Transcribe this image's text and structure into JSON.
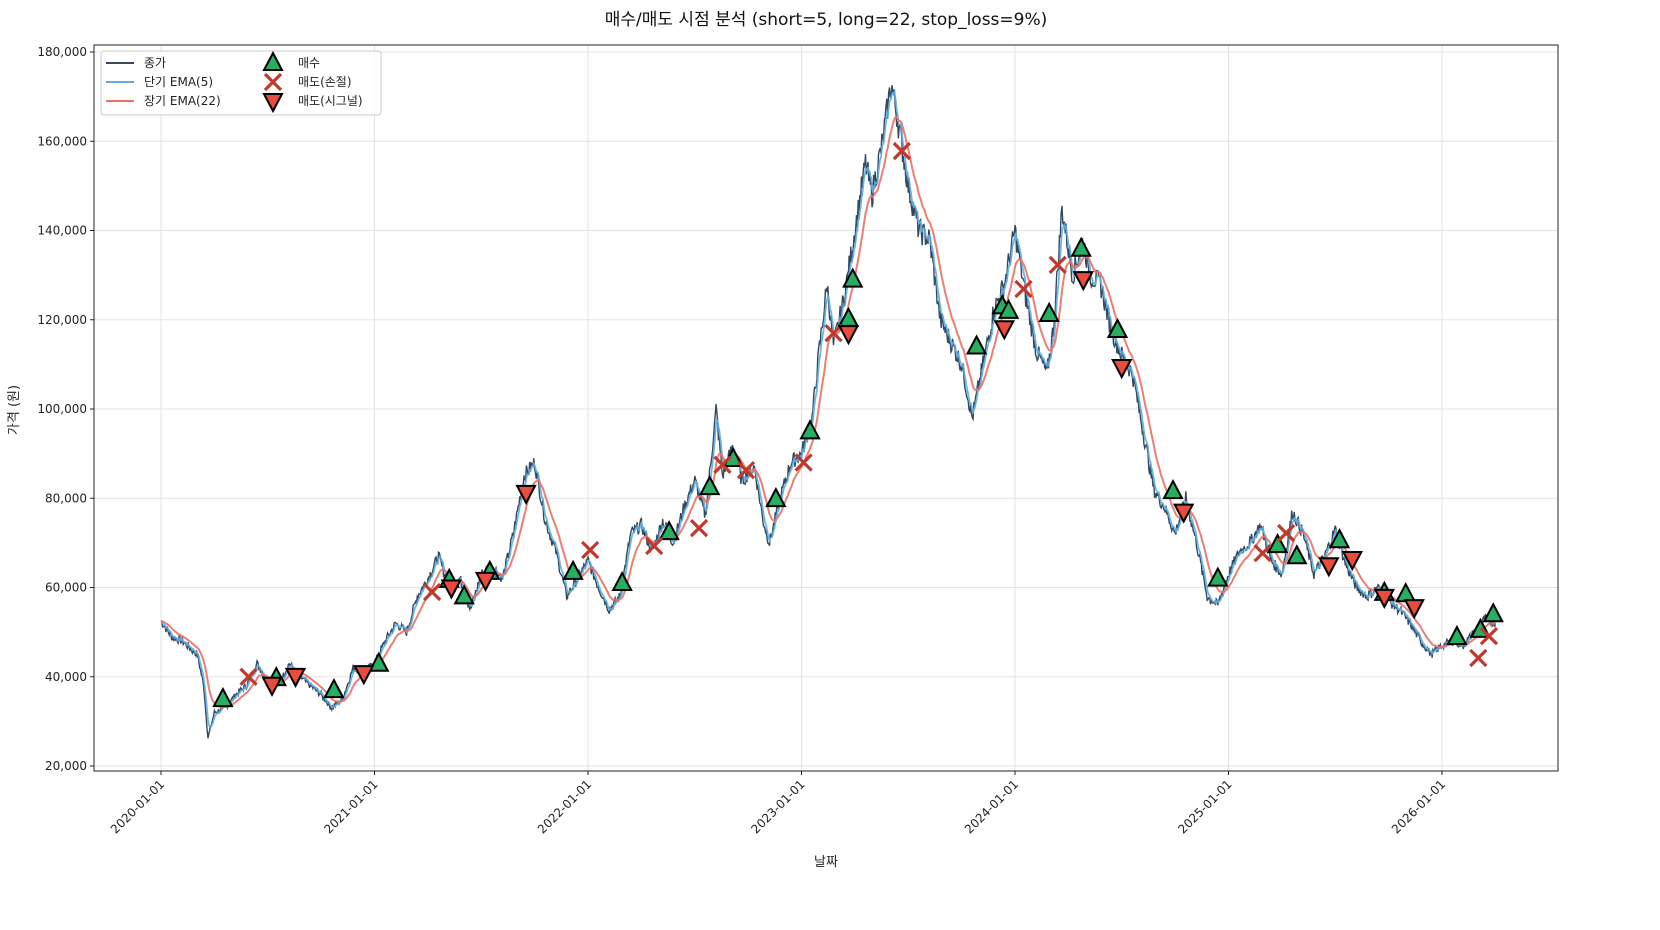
{
  "chart_data": {
    "type": "line",
    "title": "매수/매도 시점 분석 (short=5, long=22, stop_loss=9%)",
    "xlabel": "날짜",
    "ylabel": "가격 (원)",
    "ylim": [
      19000,
      181000
    ],
    "xlim_years": [
      2019.69,
      2026.54
    ],
    "yticks": [
      20000,
      40000,
      60000,
      80000,
      100000,
      120000,
      140000,
      160000,
      180000
    ],
    "ytick_labels": [
      "20,000",
      "40,000",
      "60,000",
      "80,000",
      "100,000",
      "120,000",
      "140,000",
      "160,000",
      "180,000"
    ],
    "xticks": [
      2020,
      2021,
      2022,
      2023,
      2024,
      2025,
      2026
    ],
    "xtick_labels": [
      "2020-01-01",
      "2021-01-01",
      "2022-01-01",
      "2023-01-01",
      "2024-01-01",
      "2025-01-01",
      "2026-01-01"
    ],
    "grid": true,
    "legend_position": "top-left",
    "legend": [
      "종가",
      "단기 EMA(5)",
      "장기 EMA(22)",
      "매수",
      "매도(손절)",
      "매도(시그널)"
    ],
    "colors": {
      "close": "#34495e",
      "short": "#5dade2",
      "long": "#ec7063",
      "buy": "#27ae60",
      "stop": "#c0392b",
      "signal": "#e74c3c"
    },
    "ema_short_span": 5,
    "ema_long_span": 22,
    "close_series_years_vs_thousand_won": [
      [
        2020.0,
        52.5
      ],
      [
        2020.05,
        49
      ],
      [
        2020.1,
        48
      ],
      [
        2020.17,
        45
      ],
      [
        2020.2,
        38
      ],
      [
        2020.22,
        26.3
      ],
      [
        2020.25,
        32
      ],
      [
        2020.3,
        33
      ],
      [
        2020.35,
        36
      ],
      [
        2020.4,
        38
      ],
      [
        2020.45,
        43
      ],
      [
        2020.5,
        39
      ],
      [
        2020.55,
        38
      ],
      [
        2020.6,
        43
      ],
      [
        2020.65,
        40
      ],
      [
        2020.7,
        38
      ],
      [
        2020.75,
        36
      ],
      [
        2020.8,
        33
      ],
      [
        2020.85,
        35
      ],
      [
        2020.9,
        42
      ],
      [
        2020.95,
        41
      ],
      [
        2021.0,
        43
      ],
      [
        2021.05,
        48
      ],
      [
        2021.1,
        52
      ],
      [
        2021.15,
        50
      ],
      [
        2021.2,
        58
      ],
      [
        2021.25,
        62
      ],
      [
        2021.3,
        67
      ],
      [
        2021.35,
        60
      ],
      [
        2021.4,
        62
      ],
      [
        2021.45,
        55
      ],
      [
        2021.5,
        63
      ],
      [
        2021.55,
        65
      ],
      [
        2021.6,
        62
      ],
      [
        2021.65,
        72
      ],
      [
        2021.7,
        85
      ],
      [
        2021.75,
        88
      ],
      [
        2021.8,
        75
      ],
      [
        2021.85,
        68
      ],
      [
        2021.9,
        58
      ],
      [
        2021.95,
        62
      ],
      [
        2022.0,
        66
      ],
      [
        2022.05,
        60
      ],
      [
        2022.1,
        55
      ],
      [
        2022.15,
        58
      ],
      [
        2022.2,
        72
      ],
      [
        2022.25,
        74
      ],
      [
        2022.3,
        68
      ],
      [
        2022.35,
        75
      ],
      [
        2022.4,
        70
      ],
      [
        2022.45,
        78
      ],
      [
        2022.5,
        84
      ],
      [
        2022.55,
        76
      ],
      [
        2022.6,
        100
      ],
      [
        2022.63,
        85
      ],
      [
        2022.68,
        92
      ],
      [
        2022.72,
        84
      ],
      [
        2022.78,
        87
      ],
      [
        2022.82,
        75
      ],
      [
        2022.85,
        70
      ],
      [
        2022.9,
        80
      ],
      [
        2022.95,
        88
      ],
      [
        2023.0,
        90
      ],
      [
        2023.05,
        98
      ],
      [
        2023.08,
        112
      ],
      [
        2023.12,
        128
      ],
      [
        2023.15,
        114
      ],
      [
        2023.2,
        125
      ],
      [
        2023.25,
        140
      ],
      [
        2023.3,
        155
      ],
      [
        2023.33,
        148
      ],
      [
        2023.38,
        160
      ],
      [
        2023.42,
        173
      ],
      [
        2023.45,
        165
      ],
      [
        2023.5,
        150
      ],
      [
        2023.55,
        140
      ],
      [
        2023.6,
        138
      ],
      [
        2023.65,
        120
      ],
      [
        2023.7,
        115
      ],
      [
        2023.75,
        110
      ],
      [
        2023.8,
        98
      ],
      [
        2023.85,
        110
      ],
      [
        2023.9,
        122
      ],
      [
        2023.95,
        128
      ],
      [
        2024.0,
        140
      ],
      [
        2024.05,
        125
      ],
      [
        2024.1,
        113
      ],
      [
        2024.15,
        108
      ],
      [
        2024.18,
        118
      ],
      [
        2024.22,
        145
      ],
      [
        2024.27,
        130
      ],
      [
        2024.32,
        138
      ],
      [
        2024.35,
        130
      ],
      [
        2024.4,
        128
      ],
      [
        2024.45,
        118
      ],
      [
        2024.5,
        112
      ],
      [
        2024.55,
        108
      ],
      [
        2024.6,
        95
      ],
      [
        2024.65,
        82
      ],
      [
        2024.7,
        78
      ],
      [
        2024.75,
        72
      ],
      [
        2024.8,
        80
      ],
      [
        2024.85,
        70
      ],
      [
        2024.9,
        58
      ],
      [
        2024.95,
        56
      ],
      [
        2025.0,
        63
      ],
      [
        2025.05,
        68
      ],
      [
        2025.1,
        70
      ],
      [
        2025.15,
        74
      ],
      [
        2025.2,
        66
      ],
      [
        2025.25,
        63
      ],
      [
        2025.3,
        77
      ],
      [
        2025.35,
        72
      ],
      [
        2025.4,
        63
      ],
      [
        2025.45,
        67
      ],
      [
        2025.5,
        73
      ],
      [
        2025.55,
        65
      ],
      [
        2025.6,
        60
      ],
      [
        2025.65,
        58
      ],
      [
        2025.7,
        60
      ],
      [
        2025.75,
        57
      ],
      [
        2025.8,
        55
      ],
      [
        2025.85,
        52
      ],
      [
        2025.9,
        48
      ],
      [
        2025.95,
        45
      ],
      [
        2026.0,
        47
      ],
      [
        2026.05,
        48
      ],
      [
        2026.1,
        47
      ],
      [
        2026.15,
        50
      ],
      [
        2026.2,
        53
      ],
      [
        2026.25,
        52
      ]
    ],
    "buy_points": [
      [
        2020.29,
        35
      ],
      [
        2020.54,
        39.7
      ],
      [
        2020.81,
        37
      ],
      [
        2021.02,
        42.9
      ],
      [
        2021.35,
        61.7
      ],
      [
        2021.42,
        58
      ],
      [
        2021.54,
        63.5
      ],
      [
        2021.93,
        63.5
      ],
      [
        2022.16,
        61
      ],
      [
        2022.38,
        72.4
      ],
      [
        2022.57,
        82.5
      ],
      [
        2022.68,
        88.8
      ],
      [
        2022.88,
        79.8
      ],
      [
        2023.04,
        95
      ],
      [
        2023.22,
        120.2
      ],
      [
        2023.24,
        129
      ],
      [
        2023.82,
        114
      ],
      [
        2023.94,
        123
      ],
      [
        2023.97,
        122
      ],
      [
        2024.16,
        121.3
      ],
      [
        2024.31,
        135.9
      ],
      [
        2024.48,
        117.7
      ],
      [
        2024.74,
        81.6
      ],
      [
        2024.95,
        62
      ],
      [
        2025.23,
        69.5
      ],
      [
        2025.32,
        67
      ],
      [
        2025.52,
        70.6
      ],
      [
        2025.73,
        58.8
      ],
      [
        2025.83,
        58.5
      ],
      [
        2026.07,
        48.9
      ],
      [
        2026.18,
        50.5
      ],
      [
        2026.24,
        54
      ]
    ],
    "stop_loss_points": [
      [
        2020.41,
        40
      ],
      [
        2021.27,
        59
      ],
      [
        2022.01,
        68.4
      ],
      [
        2022.31,
        69.3
      ],
      [
        2022.52,
        73.3
      ],
      [
        2022.63,
        87.5
      ],
      [
        2022.74,
        86.3
      ],
      [
        2023.01,
        88
      ],
      [
        2023.15,
        117
      ],
      [
        2023.47,
        157.8
      ],
      [
        2024.04,
        126.9
      ],
      [
        2024.2,
        132.3
      ],
      [
        2025.16,
        67.7
      ],
      [
        2025.27,
        72.2
      ],
      [
        2026.17,
        44.2
      ],
      [
        2026.22,
        49.1
      ]
    ],
    "signal_sell_points": [
      [
        2020.52,
        38.2
      ],
      [
        2020.63,
        40.2
      ],
      [
        2020.95,
        40.8
      ],
      [
        2021.36,
        60
      ],
      [
        2021.52,
        61.7
      ],
      [
        2021.71,
        81.2
      ],
      [
        2023.22,
        117
      ],
      [
        2023.95,
        118.1
      ],
      [
        2024.32,
        129.1
      ],
      [
        2024.5,
        109.4
      ],
      [
        2024.79,
        77
      ],
      [
        2025.47,
        65
      ],
      [
        2025.58,
        66.4
      ],
      [
        2025.73,
        57.9
      ],
      [
        2025.87,
        55.6
      ]
    ]
  }
}
